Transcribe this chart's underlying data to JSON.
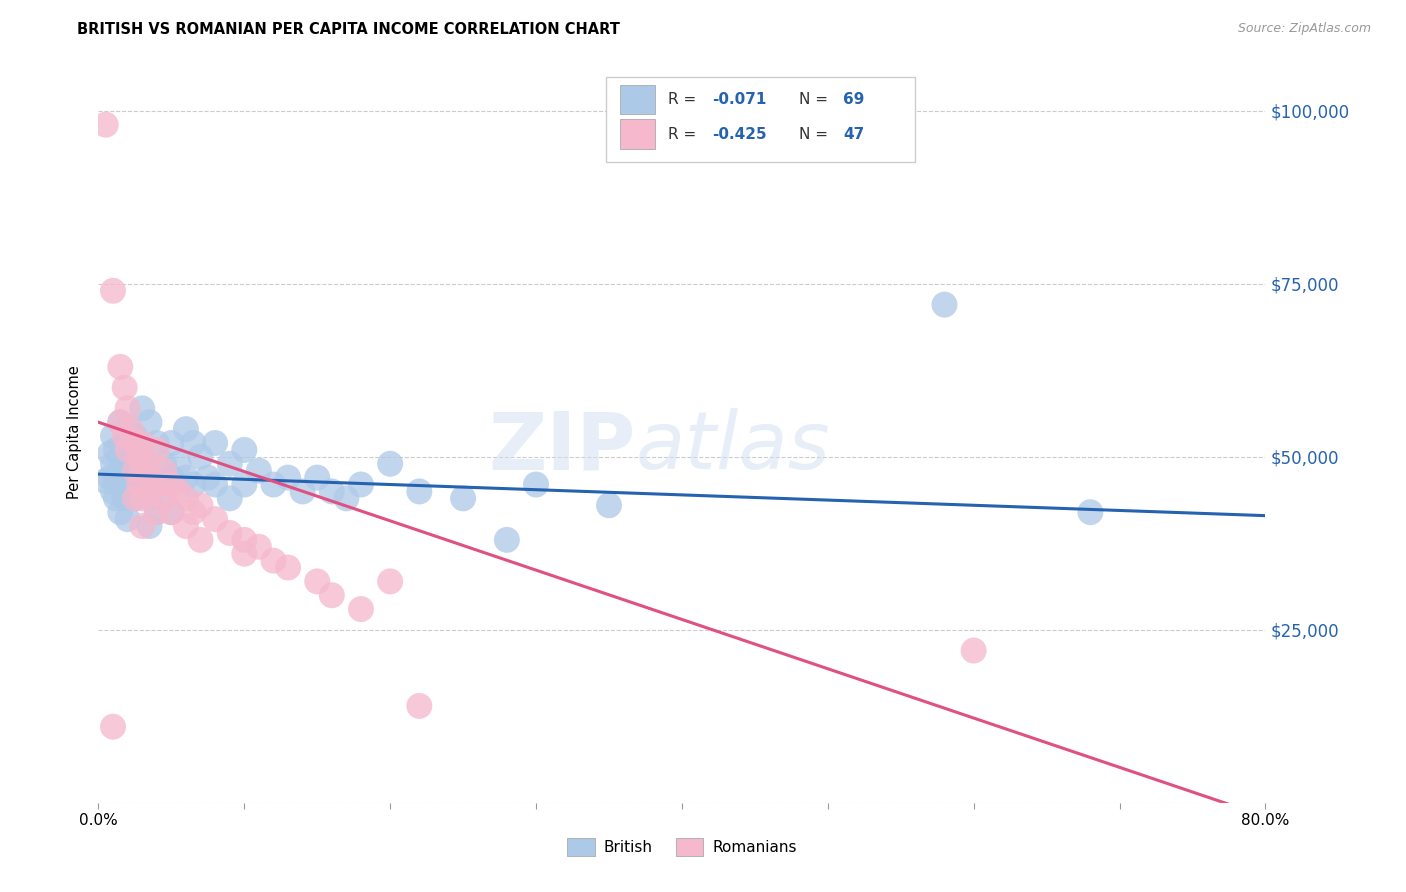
{
  "title": "BRITISH VS ROMANIAN PER CAPITA INCOME CORRELATION CHART",
  "source": "Source: ZipAtlas.com",
  "ylabel": "Per Capita Income",
  "xlim": [
    0.0,
    0.8
  ],
  "ylim": [
    0,
    107000
  ],
  "british_color": "#adc9e8",
  "romanian_color": "#f5b8cc",
  "british_line_color": "#2563b0",
  "romanian_line_color": "#e05080",
  "british_intercept": 47500,
  "british_slope": -6000,
  "romanian_intercept": 55000,
  "romanian_slope": -57000,
  "british_points": [
    [
      0.005,
      46500
    ],
    [
      0.008,
      50500
    ],
    [
      0.008,
      47000
    ],
    [
      0.01,
      53000
    ],
    [
      0.01,
      49000
    ],
    [
      0.01,
      45000
    ],
    [
      0.012,
      51000
    ],
    [
      0.012,
      47000
    ],
    [
      0.012,
      44000
    ],
    [
      0.015,
      55000
    ],
    [
      0.015,
      50000
    ],
    [
      0.015,
      46000
    ],
    [
      0.015,
      42000
    ],
    [
      0.018,
      52000
    ],
    [
      0.018,
      48000
    ],
    [
      0.018,
      44000
    ],
    [
      0.02,
      54000
    ],
    [
      0.02,
      49000
    ],
    [
      0.02,
      45000
    ],
    [
      0.02,
      41000
    ],
    [
      0.022,
      51000
    ],
    [
      0.022,
      47000
    ],
    [
      0.025,
      53000
    ],
    [
      0.025,
      48000
    ],
    [
      0.025,
      44000
    ],
    [
      0.03,
      57000
    ],
    [
      0.03,
      50000
    ],
    [
      0.03,
      45000
    ],
    [
      0.035,
      55000
    ],
    [
      0.035,
      49000
    ],
    [
      0.035,
      44000
    ],
    [
      0.035,
      40000
    ],
    [
      0.04,
      52000
    ],
    [
      0.04,
      47000
    ],
    [
      0.04,
      42000
    ],
    [
      0.045,
      49000
    ],
    [
      0.045,
      44000
    ],
    [
      0.05,
      52000
    ],
    [
      0.05,
      47000
    ],
    [
      0.05,
      42000
    ],
    [
      0.055,
      49000
    ],
    [
      0.06,
      54000
    ],
    [
      0.06,
      47000
    ],
    [
      0.065,
      52000
    ],
    [
      0.065,
      46000
    ],
    [
      0.07,
      50000
    ],
    [
      0.075,
      47000
    ],
    [
      0.08,
      52000
    ],
    [
      0.08,
      46000
    ],
    [
      0.09,
      49000
    ],
    [
      0.09,
      44000
    ],
    [
      0.1,
      51000
    ],
    [
      0.1,
      46000
    ],
    [
      0.11,
      48000
    ],
    [
      0.12,
      46000
    ],
    [
      0.13,
      47000
    ],
    [
      0.14,
      45000
    ],
    [
      0.15,
      47000
    ],
    [
      0.16,
      45000
    ],
    [
      0.17,
      44000
    ],
    [
      0.18,
      46000
    ],
    [
      0.2,
      49000
    ],
    [
      0.22,
      45000
    ],
    [
      0.25,
      44000
    ],
    [
      0.28,
      38000
    ],
    [
      0.3,
      46000
    ],
    [
      0.35,
      43000
    ],
    [
      0.58,
      72000
    ],
    [
      0.68,
      42000
    ]
  ],
  "romanian_points": [
    [
      0.005,
      98000
    ],
    [
      0.01,
      74000
    ],
    [
      0.015,
      63000
    ],
    [
      0.015,
      55000
    ],
    [
      0.018,
      60000
    ],
    [
      0.018,
      53000
    ],
    [
      0.02,
      57000
    ],
    [
      0.02,
      51000
    ],
    [
      0.022,
      54000
    ],
    [
      0.025,
      52000
    ],
    [
      0.025,
      48000
    ],
    [
      0.025,
      44000
    ],
    [
      0.028,
      50000
    ],
    [
      0.028,
      46000
    ],
    [
      0.03,
      52000
    ],
    [
      0.03,
      48000
    ],
    [
      0.03,
      44000
    ],
    [
      0.03,
      40000
    ],
    [
      0.035,
      49000
    ],
    [
      0.035,
      45000
    ],
    [
      0.04,
      51000
    ],
    [
      0.04,
      46000
    ],
    [
      0.04,
      42000
    ],
    [
      0.045,
      48000
    ],
    [
      0.045,
      44000
    ],
    [
      0.05,
      46000
    ],
    [
      0.05,
      42000
    ],
    [
      0.055,
      45000
    ],
    [
      0.06,
      44000
    ],
    [
      0.06,
      40000
    ],
    [
      0.065,
      42000
    ],
    [
      0.07,
      43000
    ],
    [
      0.07,
      38000
    ],
    [
      0.08,
      41000
    ],
    [
      0.09,
      39000
    ],
    [
      0.1,
      38000
    ],
    [
      0.1,
      36000
    ],
    [
      0.11,
      37000
    ],
    [
      0.12,
      35000
    ],
    [
      0.13,
      34000
    ],
    [
      0.15,
      32000
    ],
    [
      0.16,
      30000
    ],
    [
      0.18,
      28000
    ],
    [
      0.2,
      32000
    ],
    [
      0.22,
      14000
    ],
    [
      0.6,
      22000
    ],
    [
      0.01,
      11000
    ]
  ]
}
